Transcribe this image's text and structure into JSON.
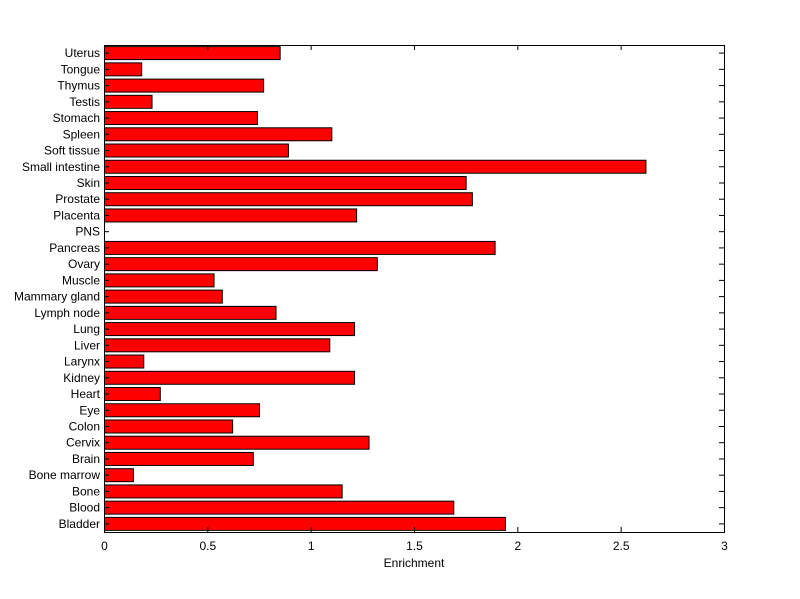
{
  "chart_data": {
    "type": "bar",
    "orientation": "horizontal",
    "title": "",
    "xlabel": "Enrichment",
    "ylabel": "",
    "xlim": [
      0,
      3
    ],
    "xticks": [
      0,
      0.5,
      1,
      1.5,
      2,
      2.5,
      3
    ],
    "xtick_labels": [
      "0",
      "0.5",
      "1",
      "1.5",
      "2",
      "2.5",
      "3"
    ],
    "grid": false,
    "bar_color": "#ff0000",
    "bar_edge_color": "#000000",
    "categories": [
      "Bladder",
      "Blood",
      "Bone",
      "Bone marrow",
      "Brain",
      "Cervix",
      "Colon",
      "Eye",
      "Heart",
      "Kidney",
      "Larynx",
      "Liver",
      "Lung",
      "Lymph node",
      "Mammary gland",
      "Muscle",
      "Ovary",
      "Pancreas",
      "PNS",
      "Placenta",
      "Prostate",
      "Skin",
      "Small intestine",
      "Soft tissue",
      "Spleen",
      "Stomach",
      "Testis",
      "Thymus",
      "Tongue",
      "Uterus"
    ],
    "values": [
      1.94,
      1.69,
      1.15,
      0.14,
      0.72,
      1.28,
      0.62,
      0.75,
      0.27,
      1.21,
      0.19,
      1.09,
      1.21,
      0.83,
      0.57,
      0.53,
      1.32,
      1.89,
      0.0,
      1.22,
      1.78,
      1.75,
      2.62,
      0.89,
      1.1,
      0.74,
      0.23,
      0.77,
      0.18,
      0.85
    ]
  }
}
